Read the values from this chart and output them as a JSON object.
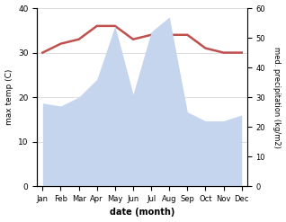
{
  "months": [
    "Jan",
    "Feb",
    "Mar",
    "Apr",
    "May",
    "Jun",
    "Jul",
    "Aug",
    "Sep",
    "Oct",
    "Nov",
    "Dec"
  ],
  "temperature": [
    30,
    32,
    33,
    36,
    36,
    33,
    34,
    34,
    34,
    31,
    30,
    30
  ],
  "precipitation": [
    28,
    27,
    30,
    36,
    54,
    31,
    52,
    57,
    25,
    22,
    22,
    24
  ],
  "temp_color": "#c0504d",
  "precip_color": "#c5d5ee",
  "ylabel_left": "max temp (C)",
  "ylabel_right": "med. precipitation (kg/m2)",
  "xlabel": "date (month)",
  "ylim_left": [
    0,
    40
  ],
  "ylim_right": [
    0,
    60
  ],
  "yticks_left": [
    0,
    10,
    20,
    30,
    40
  ],
  "yticks_right": [
    0,
    10,
    20,
    30,
    40,
    50,
    60
  ],
  "bg_color": "#ffffff",
  "grid_color": "#d0d0d0"
}
